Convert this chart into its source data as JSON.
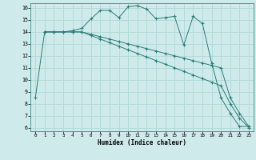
{
  "xlabel": "Humidex (Indice chaleur)",
  "bg_color": "#ceeaea",
  "grid_color": "#b0d8d8",
  "line_color": "#2d7d78",
  "xlim": [
    -0.5,
    23.5
  ],
  "ylim": [
    5.7,
    16.4
  ],
  "xticks": [
    0,
    1,
    2,
    3,
    4,
    5,
    6,
    7,
    8,
    9,
    10,
    11,
    12,
    13,
    14,
    15,
    16,
    17,
    18,
    19,
    20,
    21,
    22,
    23
  ],
  "yticks": [
    6,
    7,
    8,
    9,
    10,
    11,
    12,
    13,
    14,
    15,
    16
  ],
  "line1_x": [
    0,
    1,
    2,
    3,
    4,
    5,
    6,
    7,
    8,
    9,
    10,
    11,
    12,
    13,
    14,
    15,
    16,
    17,
    18,
    19,
    20,
    21,
    22,
    23
  ],
  "line1_y": [
    8.5,
    14.0,
    14.0,
    14.0,
    14.1,
    14.3,
    15.1,
    15.8,
    15.8,
    15.2,
    16.1,
    16.2,
    15.9,
    15.1,
    15.2,
    15.3,
    12.9,
    15.3,
    14.7,
    11.4,
    8.5,
    7.2,
    6.1,
    6.1
  ],
  "line2_x": [
    1,
    2,
    3,
    4,
    5,
    6,
    7,
    8,
    9,
    10,
    11,
    12,
    13,
    14,
    15,
    16,
    17,
    18,
    19,
    20,
    21,
    22,
    23
  ],
  "line2_y": [
    14.0,
    14.0,
    14.0,
    14.0,
    14.0,
    13.7,
    13.4,
    13.1,
    12.8,
    12.5,
    12.2,
    11.9,
    11.6,
    11.3,
    11.0,
    10.7,
    10.4,
    10.1,
    9.8,
    9.5,
    8.0,
    6.8,
    6.0
  ],
  "line3_x": [
    1,
    2,
    3,
    4,
    5,
    6,
    7,
    8,
    9,
    10,
    11,
    12,
    13,
    14,
    15,
    16,
    17,
    18,
    19,
    20,
    21,
    22,
    23
  ],
  "line3_y": [
    14.0,
    14.0,
    14.0,
    14.0,
    14.0,
    13.8,
    13.6,
    13.4,
    13.2,
    13.0,
    12.8,
    12.6,
    12.4,
    12.2,
    12.0,
    11.8,
    11.6,
    11.4,
    11.2,
    11.0,
    8.5,
    7.2,
    6.1
  ]
}
